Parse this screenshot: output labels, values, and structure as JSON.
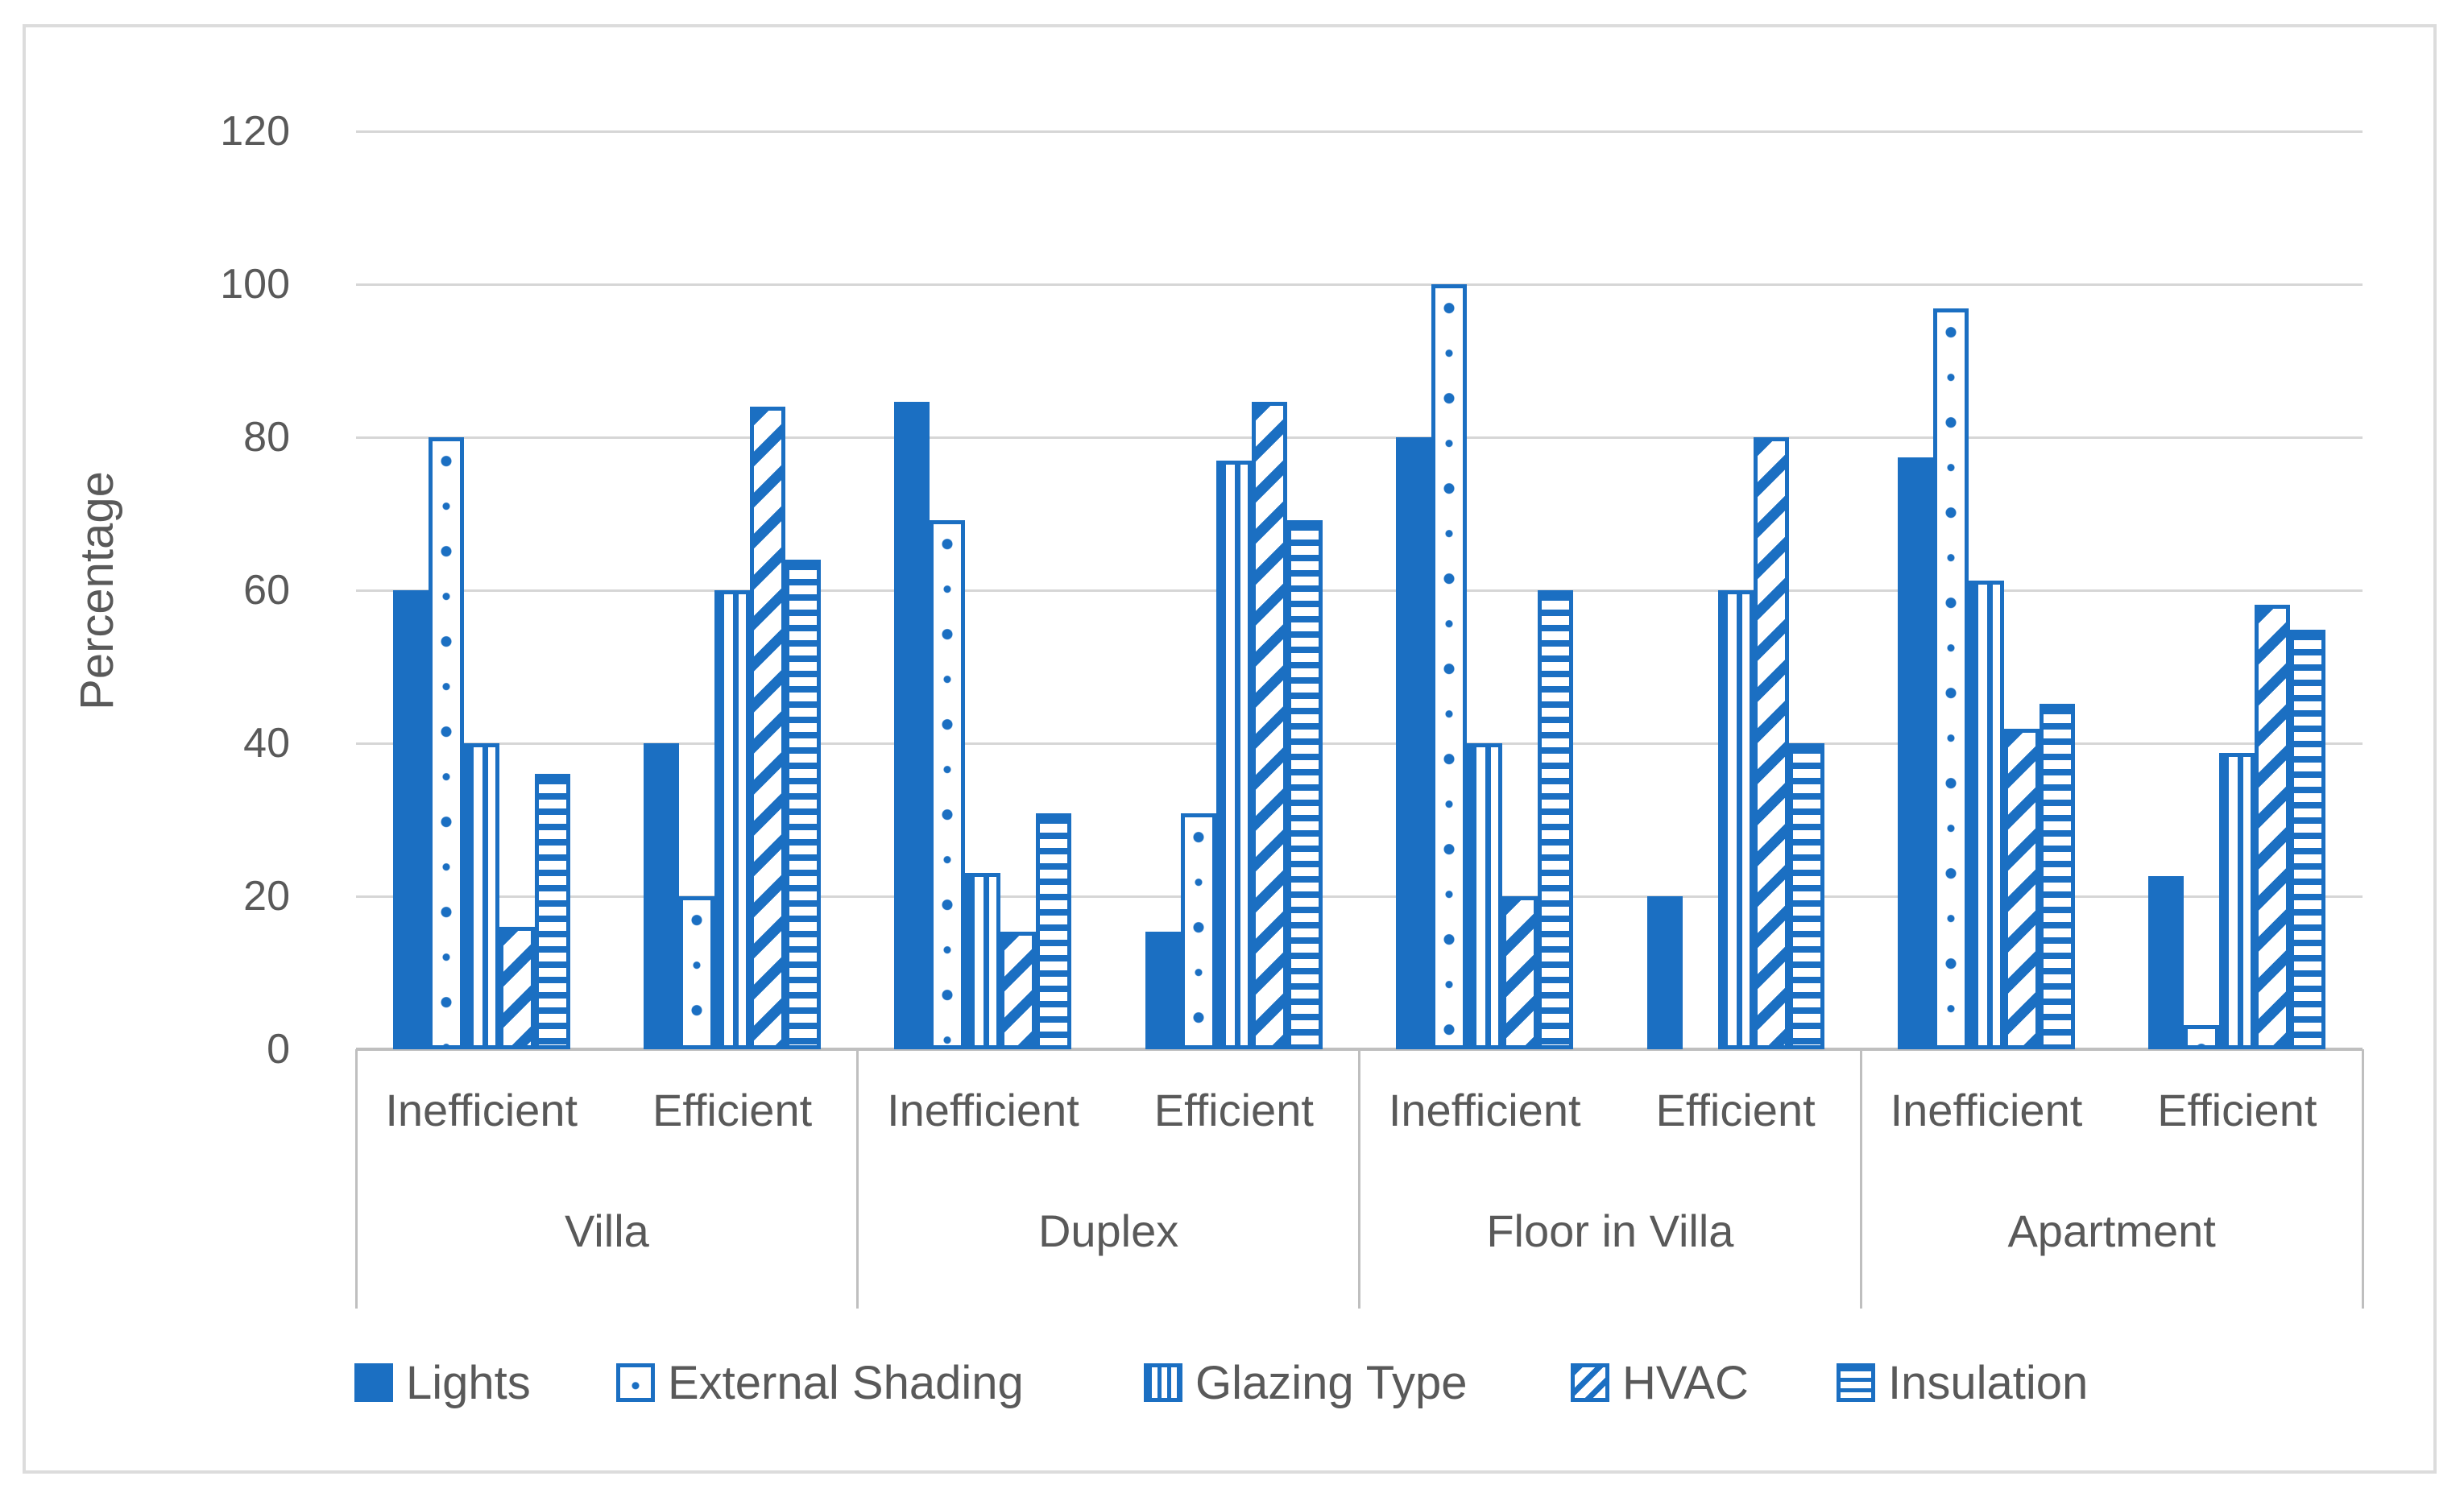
{
  "chart_data": {
    "type": "bar",
    "title": "",
    "ylabel": "Percentage",
    "xlabel": "",
    "ylim": [
      0,
      120
    ],
    "yticks": [
      0,
      20,
      40,
      60,
      80,
      100,
      120
    ],
    "grid": "horizontal",
    "legend_position": "bottom",
    "groups": [
      "Villa",
      "Duplex",
      "Floor in Villa",
      "Apartment"
    ],
    "subgroups": [
      "Inefficient",
      "Efficient"
    ],
    "categories": [
      "Villa Inefficient",
      "Villa Efficient",
      "Duplex Inefficient",
      "Duplex Efficient",
      "Floor in Villa Inefficient",
      "Floor in Villa Efficient",
      "Apartment Inefficient",
      "Apartment Efficient"
    ],
    "series": [
      {
        "name": "Lights",
        "pattern": "solid",
        "values": [
          60,
          40,
          84.6,
          15.4,
          80,
          20,
          77.4,
          22.6
        ]
      },
      {
        "name": "External Shading",
        "pattern": "dots",
        "values": [
          80,
          20,
          69.2,
          30.8,
          100,
          0,
          96.8,
          3.2
        ]
      },
      {
        "name": "Glazing Type",
        "pattern": "vertical-stripes",
        "values": [
          40,
          60,
          23.1,
          76.9,
          40,
          60,
          61.3,
          38.7
        ]
      },
      {
        "name": "HVAC",
        "pattern": "diagonal-stripes",
        "values": [
          16,
          84,
          15.4,
          84.6,
          20,
          80,
          41.9,
          58.1
        ]
      },
      {
        "name": "Insulation",
        "pattern": "horizontal-stripes",
        "values": [
          36,
          64,
          30.8,
          69.2,
          60,
          40,
          45.2,
          54.8
        ]
      }
    ],
    "colors": {
      "bar": "#1B6FC2",
      "gridline": "#D6D6D6",
      "axis_line": "#BFBFBF",
      "text": "#595959",
      "background": "#FFFFFF"
    }
  }
}
